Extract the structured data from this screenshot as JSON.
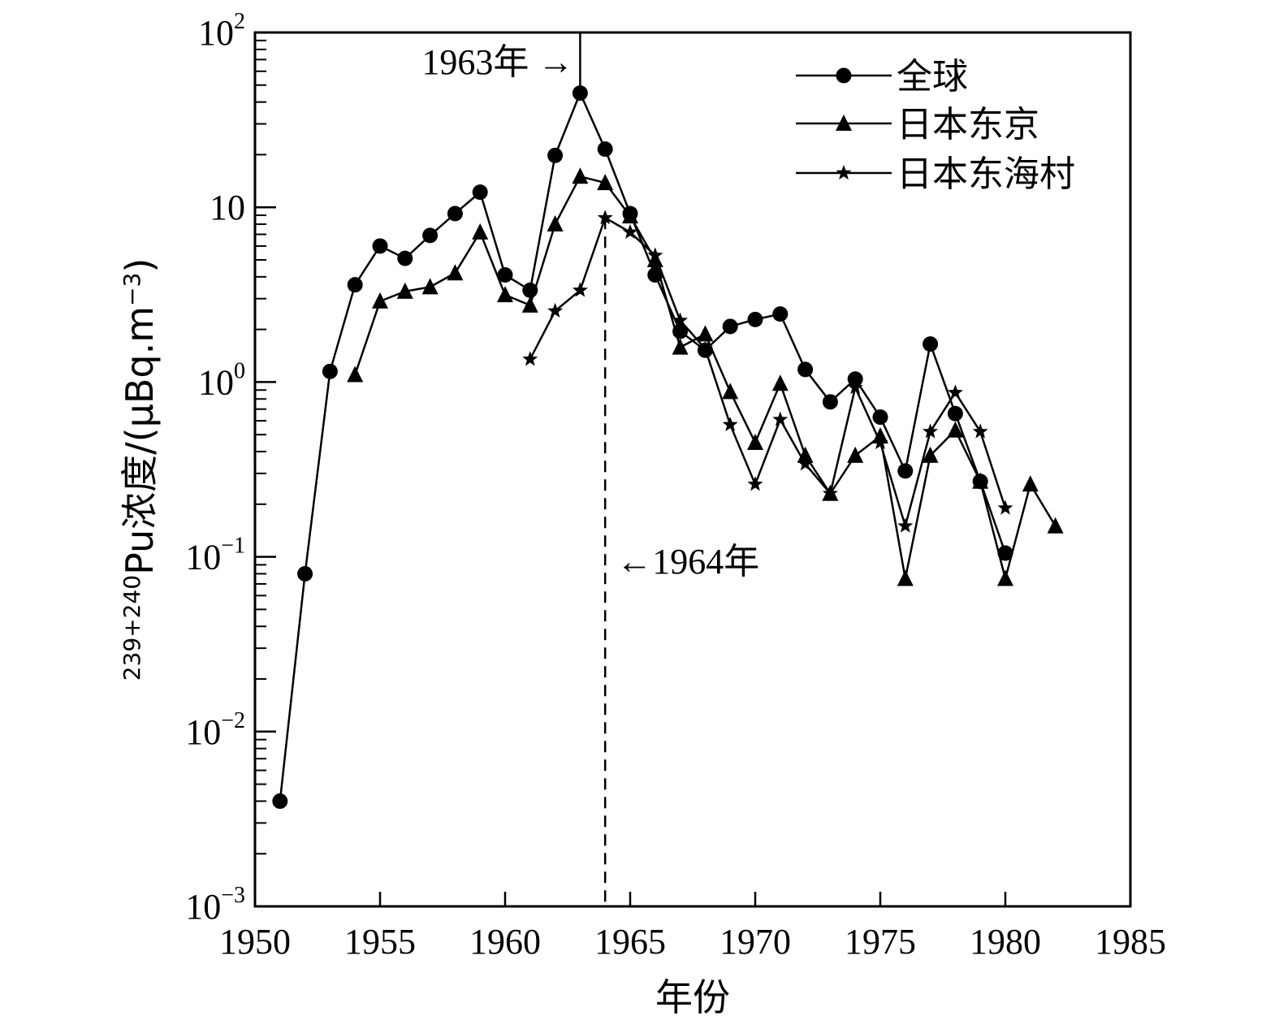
{
  "chart_data": {
    "type": "line",
    "xlabel": "年份",
    "ylabel": {
      "superscript": "239+240",
      "text": "Pu浓度/(μBq.m",
      "unit_exp": "−3",
      "close": ")"
    },
    "xlim": [
      1950,
      1985
    ],
    "ylim": [
      0.001,
      100
    ],
    "yscale": "log",
    "x_ticks": [
      "1950",
      "1955",
      "1960",
      "1965",
      "1970",
      "1975",
      "1980",
      "1985"
    ],
    "y_ticks": [
      {
        "base": "10",
        "exp": "2",
        "value": 100
      },
      {
        "base": "10",
        "exp": "",
        "value": 10
      },
      {
        "base": "10",
        "exp": "0",
        "value": 1
      },
      {
        "base": "10",
        "exp": "−1",
        "value": 0.1
      },
      {
        "base": "10",
        "exp": "−2",
        "value": 0.01
      },
      {
        "base": "10",
        "exp": "−3",
        "value": 0.001
      }
    ],
    "grid": false,
    "legend_position": "top-right",
    "series": [
      {
        "name": "全球",
        "marker": "circle",
        "points": [
          [
            1951,
            0.004
          ],
          [
            1952,
            0.08
          ],
          [
            1953,
            1.15
          ],
          [
            1954,
            3.6
          ],
          [
            1955,
            6.0
          ],
          [
            1956,
            5.1
          ],
          [
            1957,
            6.9
          ],
          [
            1958,
            9.2
          ],
          [
            1959,
            12.2
          ],
          [
            1960,
            4.1
          ],
          [
            1961,
            3.35
          ],
          [
            1962,
            19.8
          ],
          [
            1963,
            45.0
          ],
          [
            1964,
            21.5
          ],
          [
            1965,
            9.2
          ],
          [
            1966,
            4.1
          ],
          [
            1967,
            1.95
          ],
          [
            1968,
            1.52
          ],
          [
            1969,
            2.08
          ],
          [
            1970,
            2.28
          ],
          [
            1971,
            2.45
          ],
          [
            1972,
            1.18
          ],
          [
            1973,
            0.77
          ],
          [
            1974,
            1.04
          ],
          [
            1975,
            0.63
          ],
          [
            1976,
            0.31
          ],
          [
            1977,
            1.65
          ],
          [
            1978,
            0.66
          ],
          [
            1979,
            0.27
          ],
          [
            1980,
            0.105
          ]
        ]
      },
      {
        "name": "日本东京",
        "marker": "triangle",
        "points": [
          [
            1954,
            1.1
          ],
          [
            1955,
            2.9
          ],
          [
            1956,
            3.3
          ],
          [
            1957,
            3.5
          ],
          [
            1958,
            4.2
          ],
          [
            1959,
            7.2
          ],
          [
            1960,
            3.15
          ],
          [
            1961,
            2.75
          ],
          [
            1962,
            8.0
          ],
          [
            1963,
            15.0
          ],
          [
            1964,
            13.8
          ],
          [
            1965,
            8.9
          ],
          [
            1966,
            5.0
          ],
          [
            1967,
            1.58
          ],
          [
            1968,
            1.88
          ],
          [
            1969,
            0.88
          ],
          [
            1970,
            0.45
          ],
          [
            1971,
            0.98
          ],
          [
            1972,
            0.38
          ],
          [
            1973,
            0.23
          ],
          [
            1974,
            0.38
          ],
          [
            1975,
            0.49
          ],
          [
            1976,
            0.075
          ],
          [
            1977,
            0.38
          ],
          [
            1978,
            0.53
          ],
          [
            1979,
            0.27
          ],
          [
            1980,
            0.075
          ],
          [
            1981,
            0.26
          ],
          [
            1982,
            0.15
          ]
        ]
      },
      {
        "name": "日本东海村",
        "marker": "star",
        "points": [
          [
            1961,
            1.35
          ],
          [
            1962,
            2.55
          ],
          [
            1963,
            3.35
          ],
          [
            1964,
            8.7
          ],
          [
            1965,
            7.2
          ],
          [
            1966,
            5.3
          ],
          [
            1967,
            2.25
          ],
          [
            1968,
            1.55
          ],
          [
            1969,
            0.57
          ],
          [
            1970,
            0.26
          ],
          [
            1971,
            0.61
          ],
          [
            1972,
            0.34
          ],
          [
            1973,
            0.23
          ],
          [
            1974,
            0.93
          ],
          [
            1975,
            0.45
          ],
          [
            1976,
            0.15
          ],
          [
            1977,
            0.52
          ],
          [
            1978,
            0.87
          ],
          [
            1979,
            0.52
          ],
          [
            1980,
            0.19
          ]
        ]
      }
    ],
    "annotations": [
      {
        "text": "1963年 →",
        "x": 1963,
        "line_style": "solid"
      },
      {
        "text": "←1964年",
        "x": 1964,
        "line_style": "dashed"
      }
    ]
  }
}
